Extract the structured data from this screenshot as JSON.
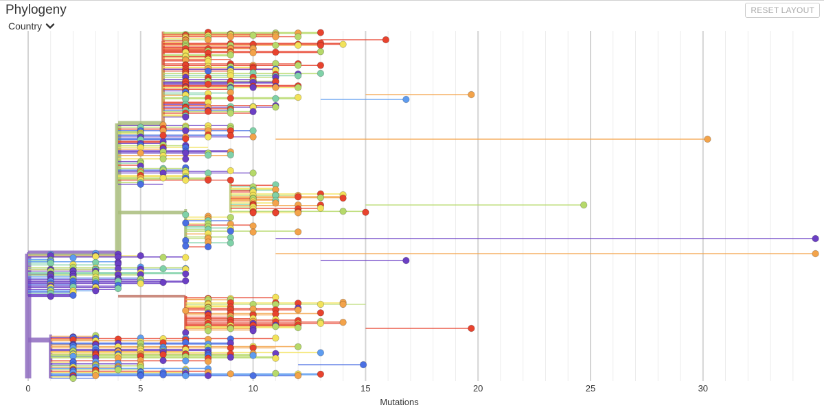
{
  "header": {
    "title": "Phylogeny",
    "color_by": "Country",
    "reset_label": "RESET LAYOUT"
  },
  "axis": {
    "title": "Mutations",
    "tick_labels": [
      "0",
      "5",
      "10",
      "15",
      "20",
      "25",
      "30"
    ],
    "range": [
      0,
      35
    ],
    "major_ticks": [
      0,
      5,
      10,
      15,
      20,
      25,
      30
    ],
    "minor_ticks": [
      1,
      2,
      3,
      4,
      6,
      7,
      8,
      9,
      11,
      12,
      13,
      14,
      16,
      17,
      18,
      19,
      21,
      22,
      23,
      24,
      26,
      27,
      28,
      29,
      31,
      32,
      33,
      34
    ]
  },
  "colors": {
    "purple": "#6b3fc4",
    "blue": "#4a6fe3",
    "lightblue": "#5e9cf0",
    "teal": "#7fd1a8",
    "green": "#b6d96a",
    "yellow": "#f2e25a",
    "orange": "#f3a34a",
    "red": "#e8432e",
    "trunk_purple": "#8e6bc0",
    "trunk_olive": "#a9bd7c"
  },
  "chart_data": {
    "type": "scatter",
    "title": "Phylogeny",
    "xlabel": "Mutations",
    "ylabel": "",
    "xlim": [
      0,
      35
    ],
    "legend": "none",
    "grid": true,
    "highlighted_tips": [
      {
        "mutations": 35,
        "color": "purple"
      },
      {
        "mutations": 35,
        "color": "orange"
      },
      {
        "mutations": 30.2,
        "color": "orange"
      },
      {
        "mutations": 24.7,
        "color": "green"
      },
      {
        "mutations": 19.7,
        "color": "orange"
      },
      {
        "mutations": 19.7,
        "color": "red"
      },
      {
        "mutations": 16.8,
        "color": "purple"
      },
      {
        "mutations": 16.8,
        "color": "lightblue"
      },
      {
        "mutations": 15.9,
        "color": "red"
      },
      {
        "mutations": 14.9,
        "color": "blue"
      }
    ]
  }
}
